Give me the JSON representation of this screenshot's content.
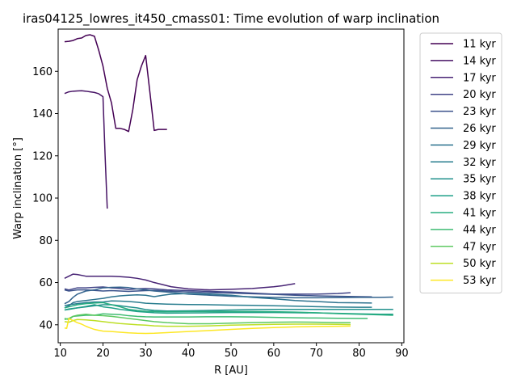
{
  "chart_data": {
    "type": "line",
    "title": "iras04125_lowres_it450_cmass01: Time evolution of warp inclination",
    "xlabel": "R [AU]",
    "ylabel": "Warp inclination [°]",
    "xlim": [
      9.5,
      90.5
    ],
    "ylim": [
      31.5,
      180
    ],
    "xticks": [
      10,
      20,
      30,
      40,
      50,
      60,
      70,
      80,
      90
    ],
    "yticks": [
      40,
      60,
      80,
      100,
      120,
      140,
      160
    ],
    "grid": false,
    "legend_position": "outside-right",
    "series": [
      {
        "name": "11 kyr",
        "color": "#440154",
        "x": [
          11,
          12,
          13,
          14,
          15,
          16,
          17,
          18,
          19,
          20,
          21,
          22,
          23,
          24,
          25,
          26,
          27,
          28,
          29,
          30,
          31,
          32,
          33,
          34,
          35
        ],
        "y": [
          174,
          174.2,
          174.6,
          175.5,
          175.8,
          177,
          177.3,
          176.6,
          170,
          162.5,
          152,
          145,
          133,
          133,
          132.5,
          131.5,
          142,
          156,
          162.5,
          167.5,
          150,
          132,
          132.5,
          132.5,
          132.5
        ]
      },
      {
        "name": "14 kyr",
        "color": "#471365",
        "x": [
          11,
          12,
          13,
          14,
          15,
          16,
          17,
          18,
          19,
          20,
          20.5,
          21
        ],
        "y": [
          149.5,
          150.3,
          150.6,
          150.7,
          150.8,
          150.6,
          150.3,
          150.0,
          149.4,
          148.0,
          120,
          95
        ]
      },
      {
        "name": "17 kyr",
        "color": "#482475",
        "x": [
          11,
          12,
          13,
          14,
          16,
          18,
          20,
          22,
          24,
          26,
          28,
          30,
          32,
          34,
          36,
          40,
          45,
          50,
          55,
          60,
          62,
          65
        ],
        "y": [
          62,
          63,
          64,
          63.8,
          63,
          63,
          63,
          63,
          62.8,
          62.5,
          62,
          61.2,
          60,
          59,
          58,
          57,
          56.5,
          56.8,
          57.2,
          58,
          58.5,
          59.5
        ]
      },
      {
        "name": "20 kyr",
        "color": "#414487",
        "x": [
          11,
          12,
          14,
          16,
          18,
          20,
          22,
          24,
          26,
          28,
          30,
          32,
          35,
          40,
          45,
          50,
          55,
          60,
          65,
          70,
          75,
          78
        ],
        "y": [
          57,
          56.5,
          57.5,
          57.5,
          57.7,
          57.9,
          57.5,
          57.2,
          56.7,
          57,
          57.2,
          57,
          56.5,
          56.2,
          55.8,
          55.5,
          55,
          54.5,
          54.5,
          54.5,
          54.8,
          55.2
        ]
      },
      {
        "name": "23 kyr",
        "color": "#3b528b",
        "x": [
          11,
          12,
          14,
          16,
          18,
          20,
          22,
          24,
          26,
          28,
          30,
          32,
          35,
          40,
          45,
          50,
          55,
          60,
          65,
          70,
          75,
          80,
          83
        ],
        "y": [
          56.5,
          56,
          56.5,
          56.5,
          56.3,
          56,
          56.2,
          56,
          55.8,
          56,
          56.2,
          56.3,
          56,
          55.5,
          55.2,
          55,
          54.7,
          54.4,
          54,
          53.7,
          53.5,
          53.3,
          53.2
        ]
      },
      {
        "name": "26 kyr",
        "color": "#33638d",
        "x": [
          11,
          12,
          13,
          14,
          16,
          18,
          20,
          22,
          24,
          26,
          28,
          30,
          32,
          35,
          40,
          45,
          50,
          55,
          60,
          65,
          70,
          75,
          80,
          85,
          88
        ],
        "y": [
          50,
          51,
          53,
          54.5,
          56,
          56.5,
          57.5,
          57.7,
          57.8,
          57.6,
          57,
          56.5,
          56,
          55.5,
          54.5,
          54,
          53.5,
          53.2,
          53,
          52.8,
          52.8,
          52.9,
          53,
          53,
          53.1
        ]
      },
      {
        "name": "29 kyr",
        "color": "#2c728e",
        "x": [
          11,
          12,
          13,
          14,
          16,
          18,
          20,
          22,
          24,
          26,
          28,
          30,
          32,
          34,
          36,
          40,
          45,
          50,
          55,
          60,
          65,
          70,
          75,
          80,
          83
        ],
        "y": [
          48,
          49,
          50.5,
          51,
          51.5,
          52,
          52.5,
          53.2,
          53.7,
          54,
          54.2,
          54,
          53.3,
          54,
          54.5,
          54.8,
          54.5,
          54,
          53,
          52.3,
          51.5,
          51,
          50.5,
          50.4,
          50.3
        ]
      },
      {
        "name": "32 kyr",
        "color": "#287d8e",
        "x": [
          11,
          12,
          14,
          16,
          18,
          20,
          22,
          24,
          26,
          28,
          30,
          32,
          35,
          40,
          45,
          50,
          55,
          60,
          65,
          70,
          75,
          80,
          83
        ],
        "y": [
          49,
          49.5,
          50,
          50.5,
          50.8,
          50.8,
          51.3,
          51.2,
          51,
          50.7,
          50.2,
          50,
          49.8,
          49.6,
          49.5,
          49.3,
          49.2,
          49,
          48.8,
          48.6,
          48.4,
          48.3,
          48.3
        ]
      },
      {
        "name": "35 kyr",
        "color": "#21918c",
        "x": [
          11,
          12,
          14,
          16,
          18,
          20,
          22,
          24,
          26,
          28,
          30,
          32,
          35,
          40,
          45,
          50,
          55,
          60,
          65,
          70,
          75,
          80,
          85,
          88
        ],
        "y": [
          47,
          47.5,
          48,
          48.5,
          49,
          49.5,
          49.5,
          49,
          48.5,
          48,
          47.2,
          46.8,
          46.5,
          46.6,
          46.8,
          47,
          47.2,
          47.3,
          47.3,
          47.3,
          47.3,
          47.3,
          47.3,
          47.3
        ]
      },
      {
        "name": "38 kyr",
        "color": "#1fa088",
        "x": [
          11,
          12,
          14,
          16,
          18,
          20,
          22,
          24,
          26,
          28,
          30,
          32,
          35,
          40,
          45,
          50,
          55,
          60,
          65,
          70,
          75,
          80,
          85,
          88
        ],
        "y": [
          47,
          47.3,
          48,
          48.7,
          49.5,
          48.5,
          48,
          47.3,
          46.8,
          46.3,
          46,
          45.7,
          45.5,
          45.6,
          45.7,
          45.8,
          45.8,
          45.8,
          45.7,
          45.6,
          45.4,
          45.2,
          45,
          45
        ]
      },
      {
        "name": "41 kyr",
        "color": "#28ae80",
        "x": [
          11,
          12,
          14,
          16,
          18,
          20,
          22,
          24,
          26,
          28,
          30,
          32,
          35,
          40,
          45,
          50,
          55,
          60,
          65,
          70,
          75,
          80,
          85,
          88
        ],
        "y": [
          48,
          48.5,
          49.5,
          50,
          50.3,
          50.5,
          49.5,
          48.5,
          47.3,
          46.8,
          46.4,
          46.3,
          46.2,
          46.3,
          46.3,
          46.3,
          46.3,
          46.2,
          46,
          45.7,
          45.3,
          45,
          44.7,
          44.5
        ]
      },
      {
        "name": "44 kyr",
        "color": "#3fbc73",
        "x": [
          11,
          12,
          13,
          14,
          16,
          18,
          20,
          22,
          24,
          26,
          28,
          30,
          32,
          35,
          40,
          45,
          50,
          55,
          60,
          65,
          70,
          75,
          80,
          82
        ],
        "y": [
          43,
          42.5,
          44,
          44.2,
          44.5,
          44.5,
          45.2,
          45,
          44.8,
          44.3,
          44,
          43.8,
          43.7,
          43.7,
          43.7,
          43.8,
          43.8,
          43.7,
          43.5,
          43.3,
          43.2,
          43.1,
          43,
          43
        ]
      },
      {
        "name": "47 kyr",
        "color": "#5ec962",
        "x": [
          11,
          12,
          13,
          14,
          16,
          18,
          20,
          22,
          24,
          26,
          28,
          30,
          32,
          35,
          40,
          45,
          50,
          55,
          60,
          65,
          70,
          75,
          78
        ],
        "y": [
          42.5,
          43,
          44,
          44.5,
          45,
          44.5,
          44.3,
          44,
          43.5,
          43,
          42.5,
          42,
          41.5,
          41,
          40.5,
          40.5,
          40.8,
          41,
          41.2,
          41.3,
          41.2,
          41,
          41
        ]
      },
      {
        "name": "50 kyr",
        "color": "#bddf26",
        "x": [
          11,
          12,
          13,
          14,
          16,
          18,
          20,
          22,
          24,
          26,
          28,
          30,
          32,
          35,
          40,
          45,
          50,
          55,
          60,
          65,
          70,
          75,
          78
        ],
        "y": [
          41.5,
          41.2,
          42,
          42.5,
          42.3,
          42,
          41.5,
          41,
          40.6,
          40.3,
          40,
          39.8,
          39.5,
          39.3,
          39.3,
          39.5,
          39.8,
          40,
          40.2,
          40.3,
          40.3,
          40.2,
          40.1
        ]
      },
      {
        "name": "53 kyr",
        "color": "#fde725",
        "x": [
          11,
          11.5,
          12,
          13,
          14,
          15,
          16,
          17,
          18,
          19,
          20,
          22,
          24,
          26,
          28,
          30,
          32,
          35,
          40,
          45,
          50,
          55,
          60,
          65,
          70,
          75,
          78
        ],
        "y": [
          38.5,
          38.3,
          43,
          42,
          41,
          40.3,
          39.3,
          38.5,
          37.8,
          37.4,
          37,
          36.8,
          36.5,
          36.2,
          36,
          35.9,
          36,
          36.3,
          36.8,
          37.3,
          37.8,
          38.3,
          38.7,
          39,
          39.2,
          39.3,
          39.4
        ]
      }
    ]
  }
}
